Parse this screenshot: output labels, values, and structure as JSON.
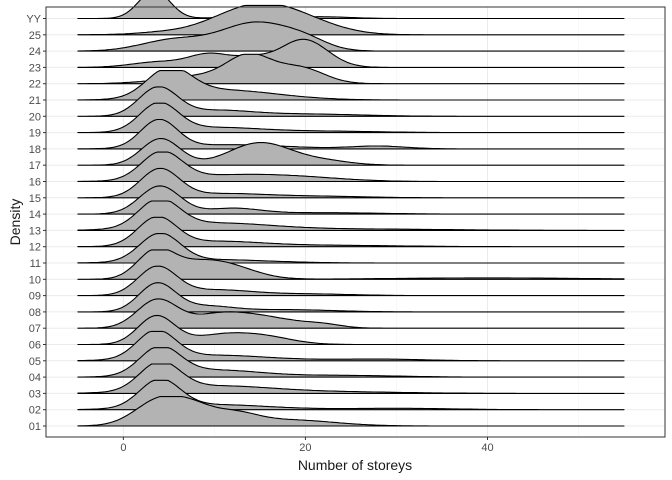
{
  "chart_data": {
    "type": "ridgeline",
    "xlabel": "Number of storeys",
    "ylabel": "Density",
    "x_range": [
      -5,
      55
    ],
    "xlim": [
      -8.5,
      59.5
    ],
    "x_ticks": [
      0,
      20,
      40
    ],
    "x_minor_ticks": [
      -10,
      10,
      30,
      50
    ],
    "grid": "on",
    "fill_color": "#b3b3b3",
    "line_color": "#000000",
    "categories": [
      "01",
      "02",
      "03",
      "04",
      "05",
      "06",
      "07",
      "08",
      "09",
      "10",
      "11",
      "12",
      "13",
      "14",
      "15",
      "16",
      "17",
      "18",
      "19",
      "20",
      "21",
      "22",
      "23",
      "24",
      "25",
      "YY"
    ],
    "series": [
      {
        "category": "01",
        "peaks": [
          [
            4.3,
            2.8,
            1.0
          ],
          [
            8,
            2.0,
            0.35
          ],
          [
            12,
            2.5,
            0.4
          ],
          [
            18,
            5,
            0.22
          ]
        ]
      },
      {
        "category": "02",
        "peaks": [
          [
            4.0,
            2.2,
            1.0
          ],
          [
            10,
            6,
            0.18
          ],
          [
            30,
            6,
            0.05
          ]
        ]
      },
      {
        "category": "03",
        "peaks": [
          [
            4.0,
            2.2,
            1.0
          ],
          [
            10,
            6,
            0.25
          ],
          [
            22,
            8,
            0.06
          ]
        ]
      },
      {
        "category": "04",
        "peaks": [
          [
            4.0,
            2.2,
            1.0
          ],
          [
            10,
            5,
            0.25
          ],
          [
            24,
            6,
            0.06
          ]
        ]
      },
      {
        "category": "05",
        "peaks": [
          [
            3.6,
            2.1,
            1.0
          ],
          [
            10,
            6,
            0.2
          ],
          [
            28,
            5,
            0.06
          ]
        ]
      },
      {
        "category": "06",
        "peaks": [
          [
            3.6,
            2.0,
            1.0
          ],
          [
            11,
            3.5,
            0.35
          ],
          [
            16,
            3,
            0.2
          ]
        ]
      },
      {
        "category": "07",
        "peaks": [
          [
            3.7,
            2.2,
            1.0
          ],
          [
            10,
            3,
            0.35
          ],
          [
            15,
            4,
            0.4
          ],
          [
            22,
            2,
            0.1
          ]
        ]
      },
      {
        "category": "08",
        "peaks": [
          [
            3.7,
            2.0,
            1.0
          ],
          [
            9,
            3,
            0.2
          ],
          [
            18,
            5,
            0.08
          ]
        ]
      },
      {
        "category": "09",
        "peaks": [
          [
            3.7,
            2.1,
            1.0
          ],
          [
            10,
            4,
            0.2
          ],
          [
            20,
            5,
            0.06
          ]
        ]
      },
      {
        "category": "10",
        "peaks": [
          [
            3.5,
            2.0,
            0.95
          ],
          [
            8,
            3,
            0.5
          ],
          [
            12,
            3,
            0.35
          ],
          [
            40,
            10,
            0.05
          ]
        ]
      },
      {
        "category": "11",
        "peaks": [
          [
            4.0,
            2.2,
            1.0
          ],
          [
            10,
            6,
            0.12
          ]
        ]
      },
      {
        "category": "12",
        "peaks": [
          [
            3.7,
            2.1,
            1.0
          ],
          [
            10,
            5,
            0.18
          ],
          [
            22,
            8,
            0.05
          ]
        ]
      },
      {
        "category": "13",
        "peaks": [
          [
            3.9,
            2.2,
            1.0
          ],
          [
            10,
            6,
            0.25
          ],
          [
            25,
            10,
            0.05
          ]
        ]
      },
      {
        "category": "14",
        "peaks": [
          [
            4.0,
            2.2,
            1.0
          ],
          [
            12,
            3,
            0.2
          ],
          [
            22,
            6,
            0.05
          ]
        ]
      },
      {
        "category": "15",
        "peaks": [
          [
            4.0,
            2.1,
            1.0
          ],
          [
            11,
            5,
            0.15
          ],
          [
            22,
            5,
            0.05
          ]
        ]
      },
      {
        "category": "16",
        "peaks": [
          [
            4.2,
            2.2,
            1.0
          ],
          [
            12,
            6,
            0.22
          ],
          [
            20,
            5,
            0.1
          ]
        ]
      },
      {
        "category": "17",
        "peaks": [
          [
            4.1,
            2.1,
            0.95
          ],
          [
            15,
            3.4,
            0.8
          ],
          [
            22,
            3,
            0.15
          ]
        ]
      },
      {
        "category": "18",
        "peaks": [
          [
            3.9,
            2.0,
            1.0
          ],
          [
            12,
            6,
            0.15
          ],
          [
            28,
            3,
            0.1
          ]
        ]
      },
      {
        "category": "19",
        "peaks": [
          [
            3.9,
            2.1,
            1.0
          ],
          [
            10,
            5,
            0.18
          ],
          [
            22,
            6,
            0.05
          ]
        ]
      },
      {
        "category": "20",
        "peaks": [
          [
            3.8,
            2.1,
            1.0
          ],
          [
            10,
            4,
            0.2
          ],
          [
            20,
            6,
            0.08
          ]
        ]
      },
      {
        "category": "21",
        "peaks": [
          [
            5.0,
            2.4,
            1.0
          ],
          [
            10,
            5,
            0.3
          ],
          [
            16,
            5,
            0.1
          ]
        ]
      },
      {
        "category": "22",
        "peaks": [
          [
            2.5,
            2.5,
            0.05
          ],
          [
            13.8,
            2.5,
            1.0
          ],
          [
            19.5,
            2.6,
            0.55
          ],
          [
            8,
            3,
            0.25
          ]
        ]
      },
      {
        "category": "23",
        "peaks": [
          [
            4,
            3,
            0.2
          ],
          [
            9.5,
            2.2,
            0.45
          ],
          [
            19.8,
            2.6,
            1.0
          ],
          [
            14,
            2,
            0.3
          ]
        ]
      },
      {
        "category": "24",
        "peaks": [
          [
            5.5,
            3.5,
            0.4
          ],
          [
            14.5,
            3.8,
            1.0
          ],
          [
            20,
            2.5,
            0.3
          ]
        ]
      },
      {
        "category": "25",
        "peaks": [
          [
            3.5,
            1.8,
            0.02
          ],
          [
            14.5,
            4.5,
            1.0
          ],
          [
            20,
            4,
            0.3
          ],
          [
            5,
            4,
            0.05
          ]
        ]
      },
      {
        "category": "YY",
        "peaks": [
          [
            3.4,
            1.7,
            1.0
          ],
          [
            14,
            3,
            0.08
          ],
          [
            22,
            3,
            0.06
          ]
        ]
      }
    ]
  }
}
